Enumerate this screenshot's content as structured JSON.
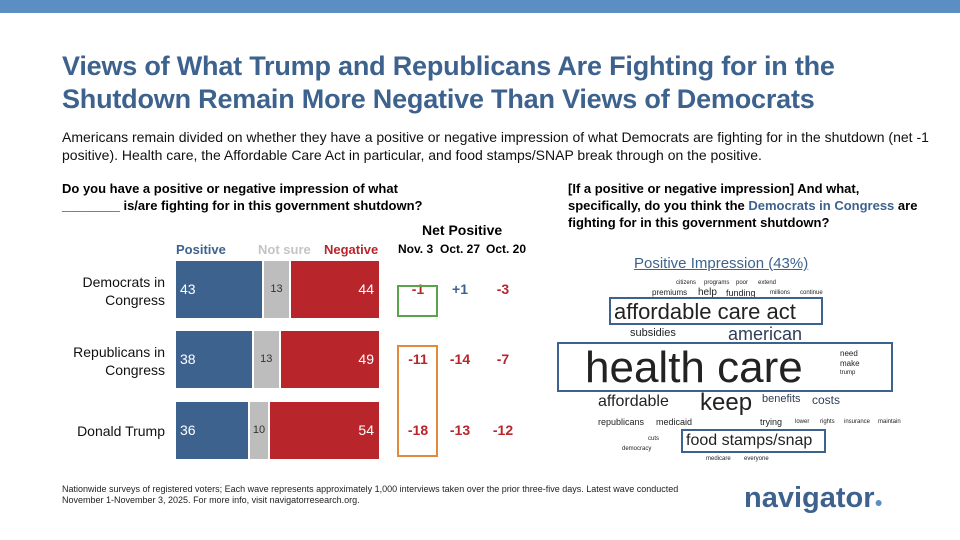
{
  "title": "Views of What Trump and Republicans Are Fighting for in the Shutdown Remain More Negative Than Views of Democrats",
  "subtitle": "Americans remain divided on whether they have a positive or negative impression of what Democrats are fighting for in the shutdown (net -1 positive). Health care, the Affordable Care Act in particular, and food stamps/SNAP break through on the positive.",
  "question_left": "Do you have a positive or negative impression of what ________ is/are fighting for in this government shutdown?",
  "question_right": {
    "pre": "[If a positive or negative impression] And what, specifically, do you think the ",
    "highlight": "Democrats in Congress",
    "post": " are fighting for in this government shutdown?"
  },
  "chart_data": {
    "type": "bar",
    "stacked": true,
    "orientation": "horizontal",
    "categories": [
      "Democrats in Congress",
      "Republicans in Congress",
      "Donald Trump"
    ],
    "series": [
      {
        "name": "Positive",
        "values": [
          43,
          38,
          36
        ],
        "color": "#3d628e"
      },
      {
        "name": "Not sure",
        "values": [
          13,
          13,
          10
        ],
        "color": "#bdbdbd"
      },
      {
        "name": "Negative",
        "values": [
          44,
          49,
          54
        ],
        "color": "#b8262c"
      }
    ],
    "net_positive": {
      "title": "Net Positive",
      "columns": [
        "Nov. 3",
        "Oct. 27",
        "Oct. 20"
      ],
      "values": [
        [
          "-1",
          "+1",
          "-3"
        ],
        [
          "-11",
          "-14",
          "-7"
        ],
        [
          "-18",
          "-13",
          "-12"
        ]
      ]
    }
  },
  "word_cloud": {
    "title": "Positive Impression (43%)",
    "boxed": [
      "affordable care act",
      "health care",
      "food stamps/snap"
    ],
    "words": [
      "citizens",
      "programs",
      "poor",
      "extend",
      "premiums",
      "help",
      "funding",
      "millions",
      "continue",
      "affordable care act",
      "american",
      "subsidies",
      "health care",
      "need",
      "make",
      "trump",
      "benefits",
      "costs",
      "insurance",
      "maintain",
      "affordable",
      "keep",
      "trying",
      "lower",
      "rights",
      "republicans",
      "medicaid",
      "cuts",
      "food stamps/snap",
      "democracy",
      "medicare",
      "everyone"
    ]
  },
  "footnote": "Nationwide surveys of registered voters; Each wave represents approximately 1,000 interviews taken over the prior three-five days. Latest wave conducted November 1-November 3, 2025. For more info, visit navigatorresearch.org.",
  "logo": "navigator"
}
